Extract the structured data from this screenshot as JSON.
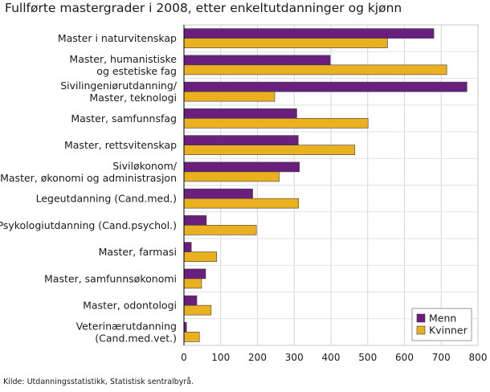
{
  "chart_data": {
    "type": "bar",
    "orientation": "horizontal",
    "title": "Fullførte mastergrader i 2008, etter enkeltutdanninger og kjønn",
    "source": "Kilde: Utdanningsstatistikk, Statistisk sentralbyrå.",
    "xlabel": "",
    "ylabel": "",
    "xlim": [
      0,
      800
    ],
    "xticks": [
      0,
      100,
      200,
      300,
      400,
      500,
      600,
      700,
      800
    ],
    "grid": true,
    "legend_position": "bottom-right",
    "categories": [
      [
        "Master i naturvitenskap"
      ],
      [
        "Master, humanistiske",
        "og estetiske fag"
      ],
      [
        "Sivilingeniørutdanning/",
        "Master, teknologi"
      ],
      [
        "Master, samfunnsfag"
      ],
      [
        "Master, rettsvitenskap"
      ],
      [
        "Siviløkonom/",
        "Master, økonomi og administrasjon"
      ],
      [
        "Legeutdanning (Cand.med.)"
      ],
      [
        "Psykologiutdanning (Cand.psychol.)"
      ],
      [
        "Master, farmasi"
      ],
      [
        "Master, samfunnsøkonomi"
      ],
      [
        "Master, odontologi"
      ],
      [
        "Veterinærutdanning",
        "(Cand.med.vet.)"
      ]
    ],
    "series": [
      {
        "name": "Menn",
        "color": "#6a1f7f",
        "values": [
          680,
          398,
          770,
          307,
          311,
          314,
          187,
          61,
          20,
          59,
          35,
          7
        ]
      },
      {
        "name": "Kvinner",
        "color": "#eab020",
        "values": [
          554,
          715,
          247,
          501,
          465,
          259,
          312,
          197,
          89,
          48,
          74,
          42
        ]
      }
    ]
  }
}
